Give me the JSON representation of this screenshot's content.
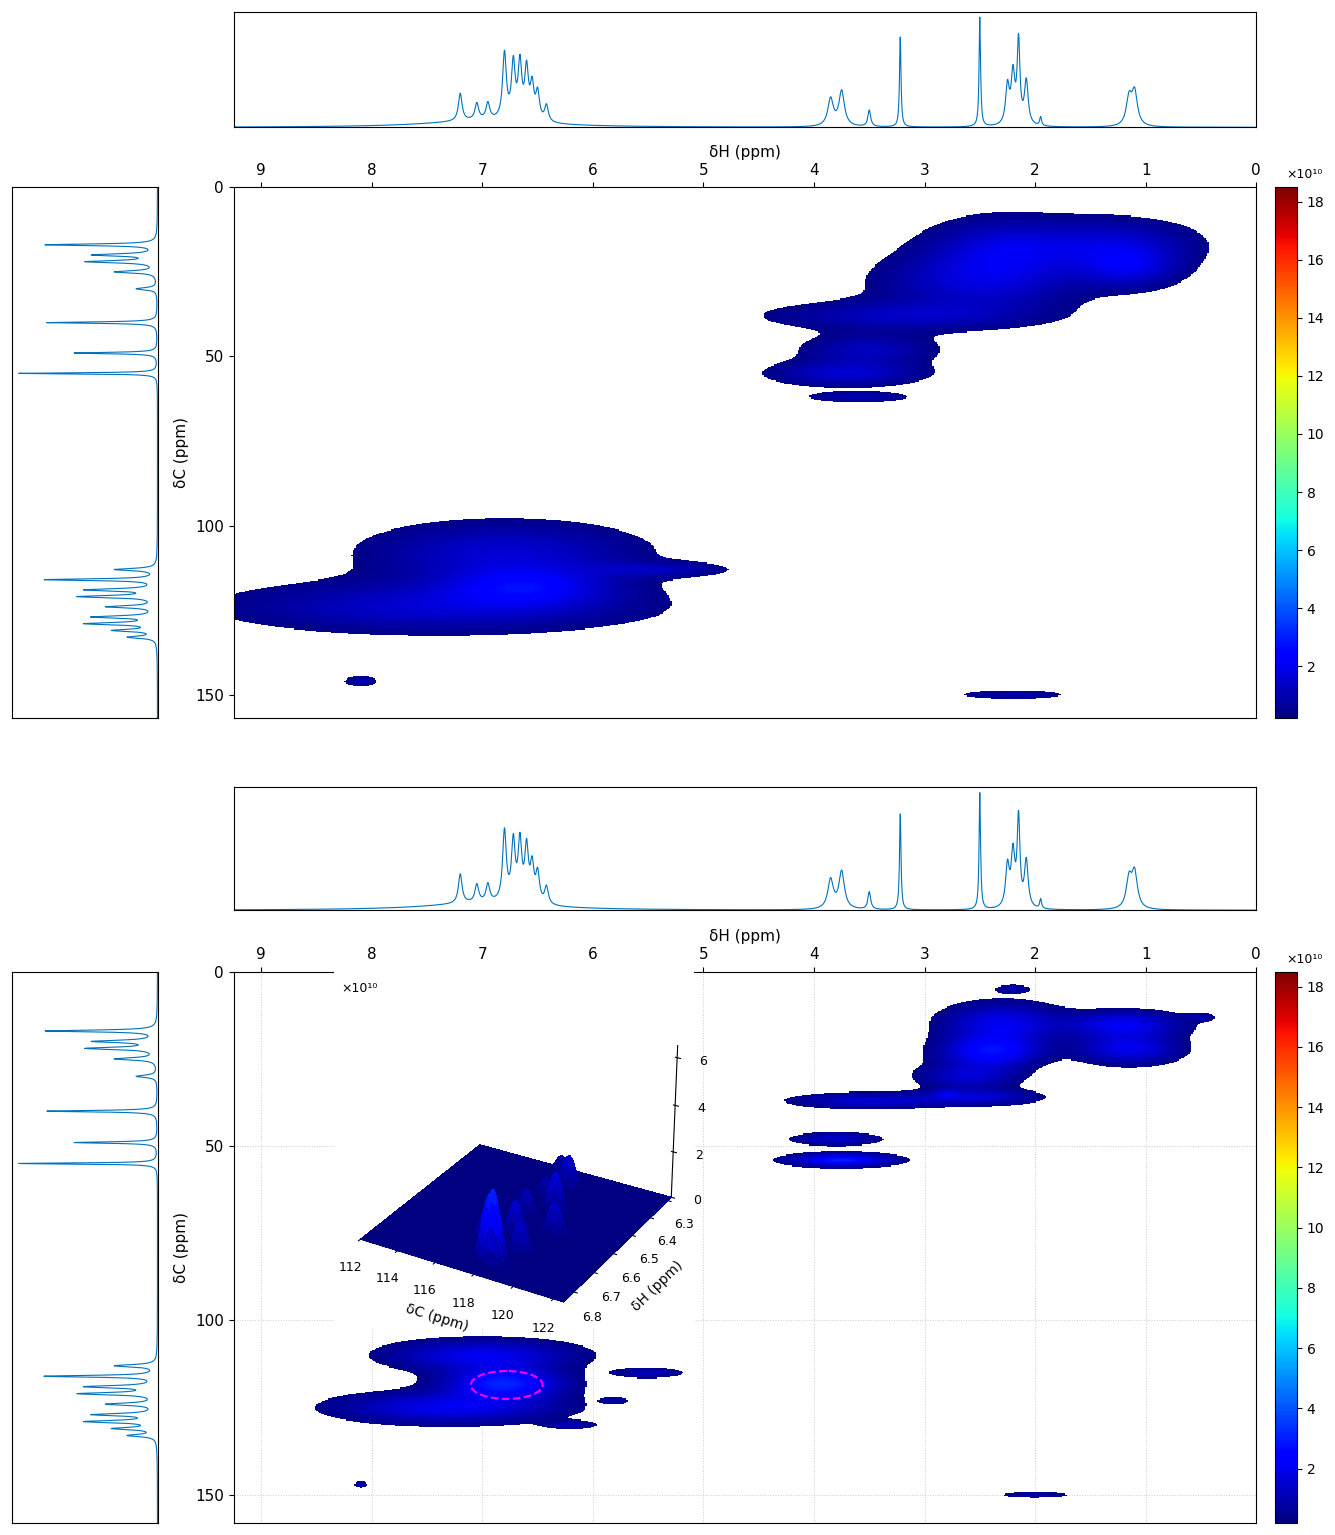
{
  "chart_data": [
    {
      "type": "hsqc",
      "xlabel": "δH (ppm)",
      "ylabel": "δC (ppm)",
      "xlim": [
        9.25,
        0
      ],
      "xticks": [
        9,
        8,
        7,
        6,
        5,
        4,
        3,
        2,
        1,
        0
      ],
      "ylim": [
        157,
        0
      ],
      "yticks": [
        0,
        50,
        100,
        150
      ],
      "grid": false,
      "h_spectrum": {
        "ylim": [
          0,
          1.05
        ],
        "tick_labels": false,
        "peaks": [
          [
            7.2,
            0.25,
            0.02
          ],
          [
            7.05,
            0.15,
            0.02
          ],
          [
            6.95,
            0.15,
            0.02
          ],
          [
            7.0,
            0.06,
            0.6
          ],
          [
            6.8,
            0.6,
            0.02
          ],
          [
            6.72,
            0.5,
            0.02
          ],
          [
            6.66,
            0.5,
            0.02
          ],
          [
            6.6,
            0.45,
            0.02
          ],
          [
            6.55,
            0.3,
            0.02
          ],
          [
            6.5,
            0.25,
            0.02
          ],
          [
            6.42,
            0.15,
            0.02
          ],
          [
            3.85,
            0.25,
            0.03
          ],
          [
            3.75,
            0.32,
            0.03
          ],
          [
            3.5,
            0.15,
            0.015
          ],
          [
            3.22,
            0.82,
            0.008
          ],
          [
            2.5,
            1.0,
            0.008
          ],
          [
            2.25,
            0.35,
            0.02
          ],
          [
            2.2,
            0.45,
            0.02
          ],
          [
            2.15,
            0.75,
            0.015
          ],
          [
            2.08,
            0.4,
            0.02
          ],
          [
            1.95,
            0.08,
            0.01
          ],
          [
            1.15,
            0.25,
            0.03
          ],
          [
            1.1,
            0.3,
            0.03
          ]
        ]
      },
      "c_spectrum": {
        "xlim": [
          1.05,
          0
        ],
        "tick_labels": false,
        "peaks": [
          [
            17,
            0.8,
            0.3
          ],
          [
            20,
            0.45,
            0.4
          ],
          [
            22,
            0.5,
            0.4
          ],
          [
            25,
            0.3,
            0.4
          ],
          [
            30,
            0.15,
            0.4
          ],
          [
            40,
            0.8,
            0.25
          ],
          [
            49,
            0.6,
            0.25
          ],
          [
            55,
            1.0,
            0.2
          ],
          [
            113,
            0.3,
            0.4
          ],
          [
            116,
            0.8,
            0.3
          ],
          [
            119,
            0.5,
            0.4
          ],
          [
            121,
            0.55,
            0.4
          ],
          [
            124,
            0.35,
            0.4
          ],
          [
            127,
            0.45,
            0.4
          ],
          [
            129,
            0.5,
            0.4
          ],
          [
            131,
            0.3,
            0.4
          ],
          [
            133,
            0.2,
            0.4
          ]
        ]
      },
      "peaks": [
        [
          2.3,
          18,
          0.45,
          6,
          1.5
        ],
        [
          1.3,
          17,
          0.5,
          5,
          1.5
        ],
        [
          1.15,
          24,
          0.3,
          4,
          1.5
        ],
        [
          2.5,
          28,
          0.6,
          6,
          1.5
        ],
        [
          3.2,
          38,
          0.8,
          3,
          1.2
        ],
        [
          3.5,
          48,
          0.4,
          3,
          1.2
        ],
        [
          3.7,
          55,
          0.45,
          2.5,
          1.5
        ],
        [
          3.6,
          62,
          0.3,
          1,
          1
        ],
        [
          6.8,
          108,
          0.8,
          6,
          1.5
        ],
        [
          7.4,
          124,
          1.2,
          5,
          1.5
        ],
        [
          6.6,
          118,
          0.5,
          4,
          1.8
        ],
        [
          5.4,
          113,
          0.4,
          1.5,
          1
        ],
        [
          8.1,
          146,
          0.1,
          1,
          1
        ],
        [
          2.2,
          150,
          0.3,
          0.8,
          1
        ]
      ],
      "colorbar": {
        "range": [
          0.2,
          18.5
        ],
        "ticks": [
          2,
          4,
          6,
          8,
          10,
          12,
          14,
          16,
          18
        ],
        "label": "×10¹⁰"
      }
    },
    {
      "type": "hsqc",
      "xlabel": "δH (ppm)",
      "ylabel": "δC (ppm)",
      "xlim": [
        9.25,
        0
      ],
      "xticks": [
        9,
        8,
        7,
        6,
        5,
        4,
        3,
        2,
        1,
        0
      ],
      "ylim": [
        158,
        0
      ],
      "yticks": [
        0,
        50,
        100,
        150
      ],
      "grid": true,
      "h_spectrum": {
        "ylim": [
          0,
          1.05
        ],
        "tick_labels": false,
        "peaks": [
          [
            7.2,
            0.25,
            0.02
          ],
          [
            7.05,
            0.15,
            0.02
          ],
          [
            6.95,
            0.15,
            0.02
          ],
          [
            7.0,
            0.06,
            0.6
          ],
          [
            6.8,
            0.6,
            0.02
          ],
          [
            6.72,
            0.5,
            0.02
          ],
          [
            6.66,
            0.5,
            0.02
          ],
          [
            6.6,
            0.45,
            0.02
          ],
          [
            6.55,
            0.3,
            0.02
          ],
          [
            6.5,
            0.25,
            0.02
          ],
          [
            6.42,
            0.15,
            0.02
          ],
          [
            3.85,
            0.25,
            0.03
          ],
          [
            3.75,
            0.32,
            0.03
          ],
          [
            3.5,
            0.15,
            0.015
          ],
          [
            3.22,
            0.82,
            0.008
          ],
          [
            2.5,
            1.0,
            0.008
          ],
          [
            2.25,
            0.35,
            0.02
          ],
          [
            2.2,
            0.45,
            0.02
          ],
          [
            2.15,
            0.75,
            0.015
          ],
          [
            2.08,
            0.4,
            0.02
          ],
          [
            1.95,
            0.08,
            0.01
          ],
          [
            1.15,
            0.25,
            0.03
          ],
          [
            1.1,
            0.3,
            0.03
          ]
        ]
      },
      "c_spectrum": {
        "xlim": [
          1.05,
          0
        ],
        "tick_labels": false,
        "peaks": [
          [
            17,
            0.8,
            0.3
          ],
          [
            20,
            0.45,
            0.4
          ],
          [
            22,
            0.5,
            0.4
          ],
          [
            25,
            0.3,
            0.4
          ],
          [
            30,
            0.15,
            0.4
          ],
          [
            40,
            0.8,
            0.25
          ],
          [
            49,
            0.6,
            0.25
          ],
          [
            55,
            1.0,
            0.2
          ],
          [
            113,
            0.3,
            0.4
          ],
          [
            116,
            0.8,
            0.3
          ],
          [
            119,
            0.5,
            0.4
          ],
          [
            121,
            0.55,
            0.4
          ],
          [
            124,
            0.35,
            0.4
          ],
          [
            127,
            0.45,
            0.4
          ],
          [
            129,
            0.5,
            0.4
          ],
          [
            131,
            0.3,
            0.4
          ],
          [
            133,
            0.2,
            0.4
          ]
        ]
      },
      "peaks": [
        [
          2.3,
          15,
          0.35,
          4,
          2
        ],
        [
          2.4,
          23,
          0.3,
          3,
          2.5
        ],
        [
          1.2,
          15,
          0.35,
          2.5,
          2
        ],
        [
          1.15,
          22,
          0.3,
          3,
          2
        ],
        [
          2.6,
          30,
          0.3,
          2.5,
          1.5
        ],
        [
          2.5,
          36,
          0.35,
          1.5,
          1.5
        ],
        [
          3.5,
          37,
          0.45,
          1.5,
          1.5
        ],
        [
          3.8,
          48,
          0.25,
          1.2,
          1.5
        ],
        [
          3.75,
          54,
          0.3,
          1.2,
          3
        ],
        [
          7.0,
          110,
          0.55,
          3,
          2
        ],
        [
          6.8,
          118,
          0.35,
          3,
          3
        ],
        [
          7.3,
          125,
          0.65,
          3,
          2
        ],
        [
          5.5,
          115,
          0.2,
          1,
          1.2
        ],
        [
          6.2,
          130,
          0.15,
          0.8,
          1
        ],
        [
          2.0,
          150,
          0.2,
          0.5,
          1
        ],
        [
          8.1,
          147,
          0.04,
          0.6,
          1
        ],
        [
          2.8,
          35,
          0.08,
          0.8,
          1
        ],
        [
          2.2,
          5,
          0.1,
          0.8,
          1
        ],
        [
          0.5,
          13,
          0.08,
          0.8,
          0.8
        ],
        [
          5.8,
          123,
          0.08,
          0.6,
          0.9
        ]
      ],
      "highlight": {
        "h": 6.78,
        "c": 118.5,
        "dh": 0.65,
        "dc": 8
      },
      "colorbar": {
        "range": [
          0.2,
          18.5
        ],
        "ticks": [
          2,
          4,
          6,
          8,
          10,
          12,
          14,
          16,
          18
        ],
        "label": "×10¹⁰"
      },
      "inset": {
        "type": "surface",
        "xlabel": "δC (ppm)",
        "ylabel": "δH (ppm)",
        "zlabel": "×10¹⁰",
        "xlim": [
          112,
          122.5
        ],
        "xticks": [
          112,
          114,
          116,
          118,
          120,
          122
        ],
        "ylim": [
          6.85,
          6.28
        ],
        "yticks": [
          6.8,
          6.7,
          6.6,
          6.5,
          6.4,
          6.3
        ],
        "zlim": [
          0,
          6.5
        ],
        "zticks": [
          0,
          2,
          4,
          6
        ],
        "widths": [
          0.35,
          0.012
        ],
        "peaks": [
          [
            118.5,
            6.8,
            3.0
          ],
          [
            118.0,
            6.78,
            2.5
          ],
          [
            119.0,
            6.72,
            1.5
          ],
          [
            117.0,
            6.7,
            1.4
          ],
          [
            118.0,
            6.65,
            1.6
          ],
          [
            119.5,
            6.6,
            1.5
          ],
          [
            117.5,
            6.55,
            1.2
          ],
          [
            118.5,
            6.5,
            1.8
          ],
          [
            117.5,
            6.45,
            1.0
          ],
          [
            118.0,
            6.38,
            1.6
          ],
          [
            117.0,
            6.32,
            0.9
          ]
        ]
      }
    }
  ]
}
